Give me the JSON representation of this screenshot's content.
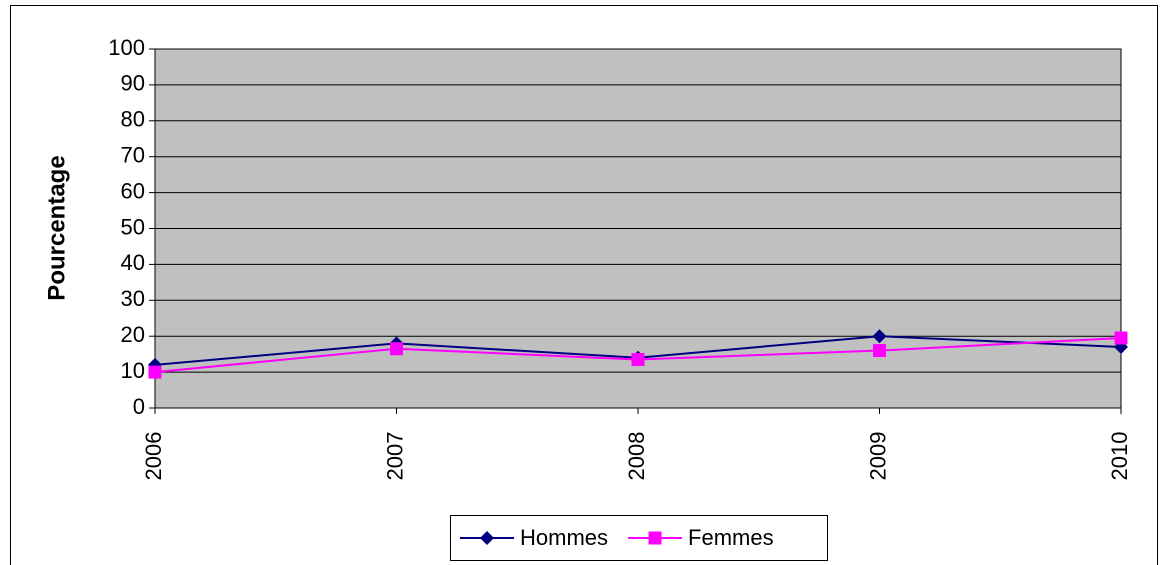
{
  "chart_data": {
    "type": "line",
    "y_label": "Pourcentage",
    "categories": [
      "2006",
      "2007",
      "2008",
      "2009",
      "2010"
    ],
    "series": [
      {
        "name": "Hommes",
        "color": "#000080",
        "marker": "diamond",
        "values": [
          12,
          18,
          14,
          20,
          17
        ]
      },
      {
        "name": "Femmes",
        "color": "#ff00ff",
        "marker": "square",
        "values": [
          10,
          16.5,
          13.5,
          16,
          19.5
        ]
      }
    ],
    "ylim": [
      0,
      100
    ],
    "yticks": [
      0,
      10,
      20,
      30,
      40,
      50,
      60,
      70,
      80,
      90,
      100
    ],
    "grid": true,
    "legend": "bottom"
  }
}
